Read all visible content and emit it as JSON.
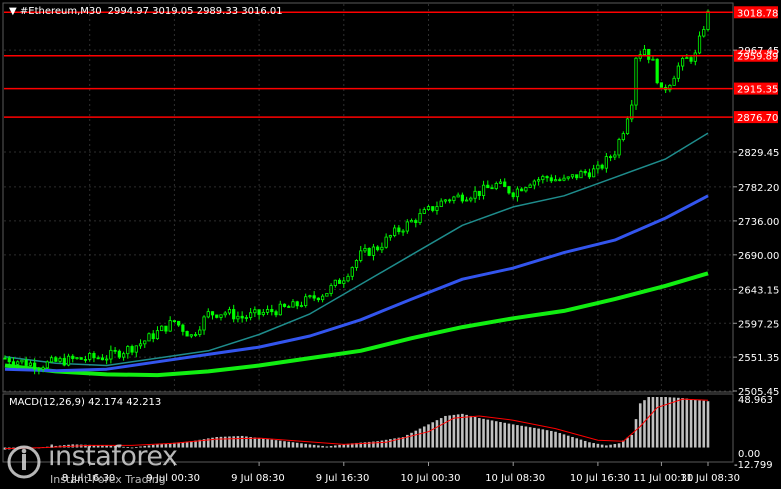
{
  "header": {
    "symbol": "#Ethereum,M30",
    "ohlc": "2994.97 3019.05 2989.33 3016.01"
  },
  "macd": {
    "label": "MACD(12,26,9) 42.174 42.213",
    "ymax_label": "48.963",
    "zero_label": "0.00",
    "ymin_label": "-12.799"
  },
  "watermark": {
    "name": "instaforex",
    "tagline": "Instant Forex Trading"
  },
  "colors": {
    "background": "#000000",
    "grid": "#2e2e2e",
    "level": "#ff0000",
    "candle": "#00ff00",
    "ma_fast": "#1e8c8c",
    "ma_mid": "#3355ee",
    "ma_slow": "#11ee11",
    "macd_hist": "#c0c0c0",
    "macd_signal": "#ff0000"
  },
  "chart_data": {
    "type": "line",
    "ylim": [
      2505.45,
      3030
    ],
    "y_ticks": [
      2505.45,
      2551.35,
      2597.25,
      2643.15,
      2690.0,
      2736.0,
      2782.2,
      2829.45,
      2967.45
    ],
    "x_ticks": [
      "8 Jul 16:30",
      "9 Jul 00:30",
      "9 Jul 08:30",
      "9 Jul 16:30",
      "10 Jul 00:30",
      "10 Jul 08:30",
      "10 Jul 16:30",
      "11 Jul 00:30",
      "11 Jul 08:30"
    ],
    "levels": [
      {
        "label": "3018.78",
        "value": 3018.78
      },
      {
        "label": "2959.89",
        "value": 2959.89
      },
      {
        "label": "2915.35",
        "value": 2915.35
      },
      {
        "label": "2876.70",
        "value": 2876.7
      }
    ],
    "price_path": [
      [
        0,
        2550
      ],
      [
        4,
        2545
      ],
      [
        8,
        2540
      ],
      [
        12,
        2545
      ],
      [
        16,
        2548
      ],
      [
        20,
        2550
      ],
      [
        24,
        2552
      ],
      [
        28,
        2560
      ],
      [
        32,
        2570
      ],
      [
        36,
        2585
      ],
      [
        40,
        2600
      ],
      [
        44,
        2580
      ],
      [
        48,
        2610
      ],
      [
        52,
        2612
      ],
      [
        56,
        2605
      ],
      [
        60,
        2610
      ],
      [
        64,
        2615
      ],
      [
        68,
        2620
      ],
      [
        72,
        2630
      ],
      [
        76,
        2640
      ],
      [
        80,
        2660
      ],
      [
        84,
        2690
      ],
      [
        88,
        2700
      ],
      [
        92,
        2720
      ],
      [
        96,
        2735
      ],
      [
        100,
        2750
      ],
      [
        104,
        2765
      ],
      [
        108,
        2770
      ],
      [
        112,
        2775
      ],
      [
        116,
        2785
      ],
      [
        120,
        2775
      ],
      [
        124,
        2790
      ],
      [
        128,
        2795
      ],
      [
        132,
        2790
      ],
      [
        136,
        2800
      ],
      [
        140,
        2805
      ],
      [
        144,
        2830
      ],
      [
        146,
        2860
      ],
      [
        147,
        2880
      ],
      [
        148,
        2900
      ],
      [
        149,
        2960
      ],
      [
        151,
        2970
      ],
      [
        153,
        2950
      ],
      [
        155,
        2910
      ],
      [
        157,
        2925
      ],
      [
        159,
        2945
      ],
      [
        161,
        2955
      ],
      [
        163,
        2960
      ],
      [
        165,
        3000
      ],
      [
        166,
        3016
      ]
    ],
    "ma_fast": [
      [
        0,
        2552
      ],
      [
        12,
        2543
      ],
      [
        24,
        2540
      ],
      [
        36,
        2550
      ],
      [
        48,
        2560
      ],
      [
        60,
        2582
      ],
      [
        72,
        2610
      ],
      [
        84,
        2650
      ],
      [
        96,
        2690
      ],
      [
        108,
        2730
      ],
      [
        120,
        2755
      ],
      [
        132,
        2770
      ],
      [
        144,
        2795
      ],
      [
        156,
        2820
      ],
      [
        166,
        2855
      ]
    ],
    "ma_mid": [
      [
        0,
        2535
      ],
      [
        12,
        2533
      ],
      [
        24,
        2535
      ],
      [
        36,
        2545
      ],
      [
        48,
        2555
      ],
      [
        60,
        2565
      ],
      [
        72,
        2580
      ],
      [
        84,
        2602
      ],
      [
        96,
        2630
      ],
      [
        108,
        2657
      ],
      [
        120,
        2672
      ],
      [
        132,
        2693
      ],
      [
        144,
        2710
      ],
      [
        156,
        2740
      ],
      [
        166,
        2770
      ]
    ],
    "ma_slow": [
      [
        0,
        2540
      ],
      [
        12,
        2532
      ],
      [
        24,
        2528
      ],
      [
        36,
        2527
      ],
      [
        48,
        2532
      ],
      [
        60,
        2540
      ],
      [
        72,
        2550
      ],
      [
        84,
        2560
      ],
      [
        96,
        2577
      ],
      [
        108,
        2592
      ],
      [
        120,
        2604
      ],
      [
        132,
        2614
      ],
      [
        144,
        2630
      ],
      [
        156,
        2648
      ],
      [
        166,
        2665
      ]
    ],
    "macd_ylim": [
      -12.799,
      48.963
    ],
    "macd_hist": [
      [
        0,
        -2
      ],
      [
        8,
        0
      ],
      [
        16,
        3
      ],
      [
        24,
        2
      ],
      [
        30,
        0
      ],
      [
        36,
        3
      ],
      [
        44,
        6
      ],
      [
        50,
        10
      ],
      [
        56,
        11
      ],
      [
        62,
        8
      ],
      [
        70,
        4
      ],
      [
        76,
        1
      ],
      [
        82,
        4
      ],
      [
        88,
        6
      ],
      [
        94,
        10
      ],
      [
        100,
        22
      ],
      [
        104,
        30
      ],
      [
        108,
        32
      ],
      [
        112,
        28
      ],
      [
        116,
        25
      ],
      [
        120,
        22
      ],
      [
        126,
        18
      ],
      [
        130,
        15
      ],
      [
        134,
        10
      ],
      [
        138,
        5
      ],
      [
        142,
        2
      ],
      [
        145,
        4
      ],
      [
        148,
        12
      ],
      [
        150,
        42
      ],
      [
        152,
        48
      ],
      [
        156,
        48
      ],
      [
        160,
        47
      ],
      [
        164,
        45
      ],
      [
        166,
        44
      ]
    ],
    "macd_signal": [
      [
        0,
        -1
      ],
      [
        10,
        0
      ],
      [
        20,
        2
      ],
      [
        30,
        2
      ],
      [
        40,
        4
      ],
      [
        50,
        8
      ],
      [
        60,
        9
      ],
      [
        70,
        6
      ],
      [
        80,
        3
      ],
      [
        90,
        5
      ],
      [
        100,
        15
      ],
      [
        106,
        28
      ],
      [
        112,
        30
      ],
      [
        120,
        26
      ],
      [
        130,
        18
      ],
      [
        140,
        7
      ],
      [
        146,
        6
      ],
      [
        150,
        20
      ],
      [
        154,
        38
      ],
      [
        160,
        46
      ],
      [
        166,
        45
      ]
    ]
  }
}
